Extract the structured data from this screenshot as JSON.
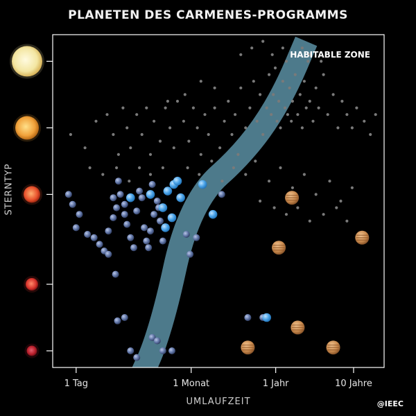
{
  "colors": {
    "background": "#000000",
    "frame": "#ffffff",
    "known_planet": "#7a7a7a",
    "habitable_zone": "#5b8fa3",
    "earth_like": "#5a6f9e",
    "water_world": "#4aa3e8",
    "jupiter_like": "#c98a4e"
  },
  "chart_data": {
    "type": "scatter",
    "title": "PLANETEN DES CARMENES-PROGRAMMS",
    "xlabel": "UMLAUFZEIT",
    "ylabel": "STERNTYP",
    "x_scale": "log",
    "x_unit": "days",
    "xlim": [
      0.5,
      9000
    ],
    "x_ticks": [
      {
        "value": 1,
        "label": "1 Tag"
      },
      {
        "value": 30,
        "label": "1 Monat"
      },
      {
        "value": 365,
        "label": "1 Jahr"
      },
      {
        "value": 3650,
        "label": "10 Jahre"
      }
    ],
    "y_categories": [
      "G",
      "K",
      "M0",
      "M3",
      "M5"
    ],
    "ylim": [
      0,
      5
    ],
    "y_ticks": [
      {
        "value": 4.6,
        "icon": "yellow-star-icon",
        "color": "#f3e6a2"
      },
      {
        "value": 3.6,
        "icon": "orange-star-icon",
        "color": "#f0a13a"
      },
      {
        "value": 2.6,
        "icon": "red-orange-star-icon",
        "color": "#e8512c"
      },
      {
        "value": 1.25,
        "icon": "red-star-icon",
        "color": "#d8342c"
      },
      {
        "value": 0.25,
        "icon": "dark-red-star-icon",
        "color": "#b81e2a"
      }
    ],
    "grid": false,
    "annotation": {
      "text": "HABITABLE ZONE"
    },
    "habitable_zone": [
      {
        "x": 7,
        "y": -0.1
      },
      {
        "x": 10,
        "y": 0.3
      },
      {
        "x": 15,
        "y": 1.0
      },
      {
        "x": 23,
        "y": 2.0
      },
      {
        "x": 45,
        "y": 2.7
      },
      {
        "x": 110,
        "y": 3.1
      },
      {
        "x": 250,
        "y": 3.6
      },
      {
        "x": 500,
        "y": 4.2
      },
      {
        "x": 900,
        "y": 4.9
      }
    ],
    "series": [
      {
        "marker": "small-grey-dot",
        "points": [
          [
            0.85,
            3.5
          ],
          [
            1.3,
            3.3
          ],
          [
            1.8,
            3.7
          ],
          [
            2.5,
            3.8
          ],
          [
            3,
            3.5
          ],
          [
            3.5,
            3.2
          ],
          [
            4,
            3.9
          ],
          [
            4.5,
            3.6
          ],
          [
            5,
            3.3
          ],
          [
            6,
            3.8
          ],
          [
            7,
            3.5
          ],
          [
            8,
            3.9
          ],
          [
            9,
            3.2
          ],
          [
            10,
            3.7
          ],
          [
            12,
            3.4
          ],
          [
            14,
            3.9
          ],
          [
            16,
            3.6
          ],
          [
            18,
            3.3
          ],
          [
            20,
            4.0
          ],
          [
            24,
            3.7
          ],
          [
            28,
            3.4
          ],
          [
            32,
            3.9
          ],
          [
            36,
            3.6
          ],
          [
            40,
            3.2
          ],
          [
            45,
            3.8
          ],
          [
            50,
            3.5
          ],
          [
            60,
            3.9
          ],
          [
            70,
            3.3
          ],
          [
            80,
            3.7
          ],
          [
            90,
            4.0
          ],
          [
            100,
            3.5
          ],
          [
            110,
            3.8
          ],
          [
            120,
            3.2
          ],
          [
            130,
            4.2
          ],
          [
            150,
            3.6
          ],
          [
            170,
            3.9
          ],
          [
            190,
            4.3
          ],
          [
            210,
            3.7
          ],
          [
            230,
            4.1
          ],
          [
            250,
            3.5
          ],
          [
            280,
            3.9
          ],
          [
            300,
            4.4
          ],
          [
            320,
            3.8
          ],
          [
            340,
            4.1
          ],
          [
            360,
            4.5
          ],
          [
            380,
            3.7
          ],
          [
            400,
            4.0
          ],
          [
            420,
            3.6
          ],
          [
            450,
            4.3
          ],
          [
            480,
            3.9
          ],
          [
            500,
            4.6
          ],
          [
            520,
            3.8
          ],
          [
            550,
            4.2
          ],
          [
            580,
            3.7
          ],
          [
            600,
            4.0
          ],
          [
            650,
            4.4
          ],
          [
            700,
            3.8
          ],
          [
            750,
            4.1
          ],
          [
            800,
            3.6
          ],
          [
            850,
            4.3
          ],
          [
            900,
            3.9
          ],
          [
            950,
            4.6
          ],
          [
            1000,
            4.0
          ],
          [
            1100,
            3.7
          ],
          [
            1200,
            4.2
          ],
          [
            1300,
            3.9
          ],
          [
            1500,
            4.4
          ],
          [
            1700,
            3.8
          ],
          [
            2000,
            4.1
          ],
          [
            2300,
            3.6
          ],
          [
            2600,
            4.0
          ],
          [
            3000,
            3.8
          ],
          [
            3500,
            3.6
          ],
          [
            4000,
            3.9
          ],
          [
            5000,
            3.7
          ],
          [
            6000,
            3.5
          ],
          [
            7000,
            3.8
          ],
          [
            1.5,
            3.0
          ],
          [
            2.2,
            2.9
          ],
          [
            3.3,
            3.0
          ],
          [
            4.8,
            2.8
          ],
          [
            6.5,
            3.0
          ],
          [
            9,
            2.9
          ],
          [
            13,
            3.0
          ],
          [
            19,
            2.8
          ],
          [
            27,
            3.0
          ],
          [
            38,
            2.9
          ],
          [
            55,
            3.1
          ],
          [
            75,
            2.8
          ],
          [
            105,
            3.0
          ],
          [
            150,
            2.9
          ],
          [
            200,
            3.1
          ],
          [
            300,
            2.8
          ],
          [
            420,
            3.0
          ],
          [
            600,
            2.7
          ],
          [
            850,
            2.9
          ],
          [
            1200,
            2.6
          ],
          [
            1800,
            2.8
          ],
          [
            2500,
            2.5
          ],
          [
            3500,
            2.7
          ],
          [
            130,
            4.7
          ],
          [
            180,
            4.8
          ],
          [
            250,
            4.9
          ],
          [
            330,
            4.7
          ],
          [
            450,
            4.8
          ],
          [
            650,
            4.7
          ],
          [
            800,
            4.8
          ],
          [
            1000,
            4.7
          ],
          [
            1400,
            4.6
          ],
          [
            230,
            2.5
          ],
          [
            350,
            2.4
          ],
          [
            500,
            2.3
          ],
          [
            700,
            2.4
          ],
          [
            1000,
            2.2
          ],
          [
            1500,
            2.3
          ],
          [
            2200,
            2.4
          ],
          [
            3000,
            2.2
          ],
          [
            40,
            4.3
          ],
          [
            60,
            4.2
          ],
          [
            25,
            4.1
          ],
          [
            15,
            4.0
          ]
        ]
      },
      {
        "marker": "earth-like-planet",
        "points": [
          [
            0.9,
            2.45
          ],
          [
            0.8,
            2.6
          ],
          [
            1.1,
            2.3
          ],
          [
            1.0,
            2.1
          ],
          [
            1.4,
            2.0
          ],
          [
            1.7,
            1.95
          ],
          [
            2.0,
            1.85
          ],
          [
            2.3,
            1.75
          ],
          [
            2.6,
            2.05
          ],
          [
            3.0,
            2.55
          ],
          [
            3.3,
            2.4
          ],
          [
            3.0,
            2.25
          ],
          [
            3.7,
            2.6
          ],
          [
            4.2,
            2.3
          ],
          [
            4.5,
            2.15
          ],
          [
            5,
            1.95
          ],
          [
            5.5,
            1.8
          ],
          [
            6,
            2.35
          ],
          [
            7,
            2.55
          ],
          [
            7.5,
            2.1
          ],
          [
            8,
            1.9
          ],
          [
            9,
            2.05
          ],
          [
            10,
            2.3
          ],
          [
            11,
            2.5
          ],
          [
            12,
            2.2
          ],
          [
            13,
            1.9
          ],
          [
            14,
            2.1
          ],
          [
            3.2,
            1.4
          ],
          [
            2.6,
            1.7
          ],
          [
            8.5,
            1.8
          ],
          [
            26,
            2.0
          ],
          [
            29,
            1.7
          ],
          [
            35,
            1.95
          ],
          [
            74,
            2.6
          ],
          [
            160,
            0.75
          ],
          [
            250,
            0.75
          ],
          [
            3.4,
            0.7
          ],
          [
            4.2,
            0.75
          ],
          [
            13,
            0.25
          ],
          [
            17,
            0.25
          ],
          [
            5,
            0.25
          ],
          [
            6,
            0.15
          ],
          [
            9.5,
            0.45
          ],
          [
            11,
            0.4
          ],
          [
            3.5,
            2.8
          ],
          [
            4.2,
            2.45
          ],
          [
            6.5,
            2.65
          ],
          [
            9.5,
            2.75
          ],
          [
            11.5,
            2.4
          ]
        ]
      },
      {
        "marker": "water-world-planet",
        "points": [
          [
            5,
            2.55
          ],
          [
            9,
            2.6
          ],
          [
            13,
            2.4
          ],
          [
            15,
            2.65
          ],
          [
            18,
            2.75
          ],
          [
            20,
            2.8
          ],
          [
            14,
            2.1
          ],
          [
            17,
            2.25
          ],
          [
            22,
            2.55
          ],
          [
            42,
            2.75
          ],
          [
            57,
            2.3
          ],
          [
            280,
            0.75
          ]
        ]
      },
      {
        "marker": "jupiter-like-planet",
        "points": [
          [
            590,
            2.55
          ],
          [
            400,
            1.8
          ],
          [
            4700,
            1.95
          ],
          [
            700,
            0.6
          ],
          [
            2000,
            0.3
          ],
          [
            160,
            0.3
          ]
        ]
      }
    ]
  },
  "credit": "@IEEC"
}
